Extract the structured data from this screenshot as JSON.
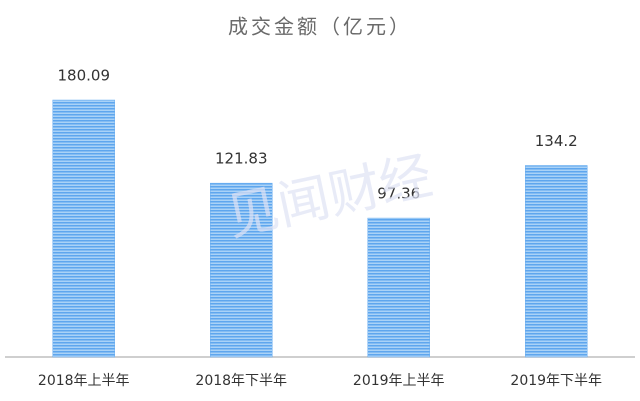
{
  "chart_data": {
    "type": "bar",
    "title": "成交金额（亿元）",
    "watermark": "见闻财经",
    "categories": [
      "2018年上半年",
      "2018年下半年",
      "2019年上半年",
      "2019年下半年"
    ],
    "values": [
      180.09,
      121.83,
      97.36,
      134.2
    ],
    "color": "#6aaef0"
  }
}
